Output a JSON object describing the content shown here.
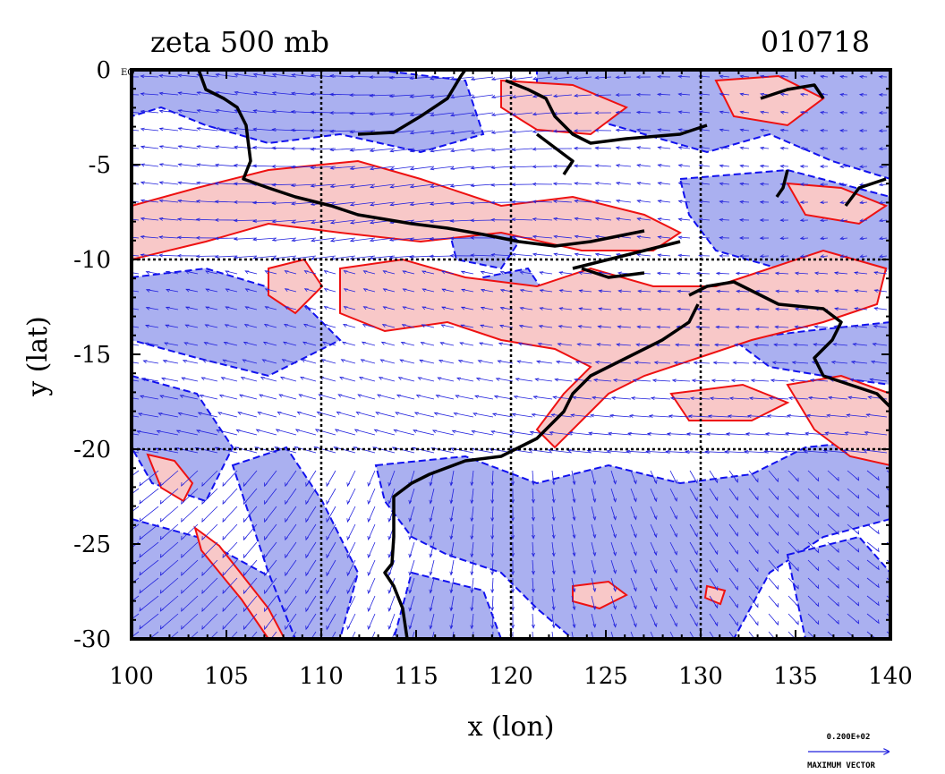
{
  "title_left": "zeta 500 mb",
  "title_right": "010718",
  "map": {
    "xlabel": "x (lon)",
    "ylabel": "y (lat)",
    "x_ticks": [
      100,
      105,
      110,
      115,
      120,
      125,
      130,
      135,
      140
    ],
    "y_ticks": [
      0,
      -5,
      -10,
      -15,
      -20,
      -25,
      -30
    ],
    "xlim": [
      100,
      140
    ],
    "ylim": [
      -30,
      0
    ],
    "grid_lines_lon": [
      110,
      120,
      130
    ],
    "grid_lines_lat": [
      -10,
      -20
    ],
    "corner_tag": "EQ",
    "colors": {
      "positive_fill": "#f8c8c8",
      "negative_fill": "#aab0f0",
      "positive_contour": "#ee1111",
      "negative_contour": "#1111ee",
      "vector": "#2222dd",
      "coast": "#000000"
    }
  },
  "legend": {
    "value": "0.200E+02",
    "caption": "MAXIMUM VECTOR"
  }
}
